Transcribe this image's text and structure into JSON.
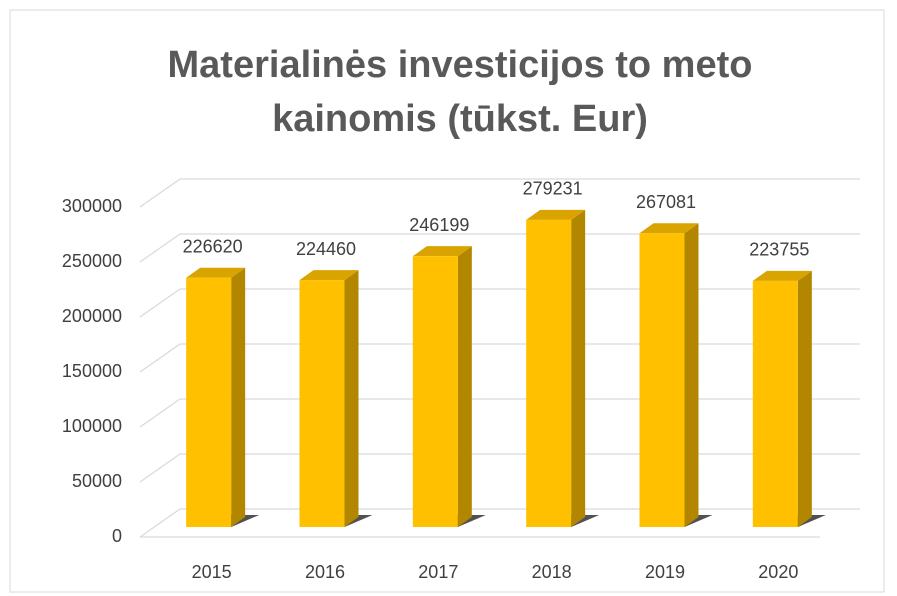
{
  "chart_data": {
    "type": "bar3d",
    "title": "Materialinės investicijos to meto kainomis (tūkst. Eur)",
    "categories": [
      "2015",
      "2016",
      "2017",
      "2018",
      "2019",
      "2020"
    ],
    "values": [
      226620,
      224460,
      246199,
      279231,
      267081,
      223755
    ],
    "color": "#ffc000",
    "ylim": [
      0,
      300000
    ],
    "yticks": [
      0,
      50000,
      100000,
      150000,
      200000,
      250000,
      300000
    ],
    "grid": true
  }
}
